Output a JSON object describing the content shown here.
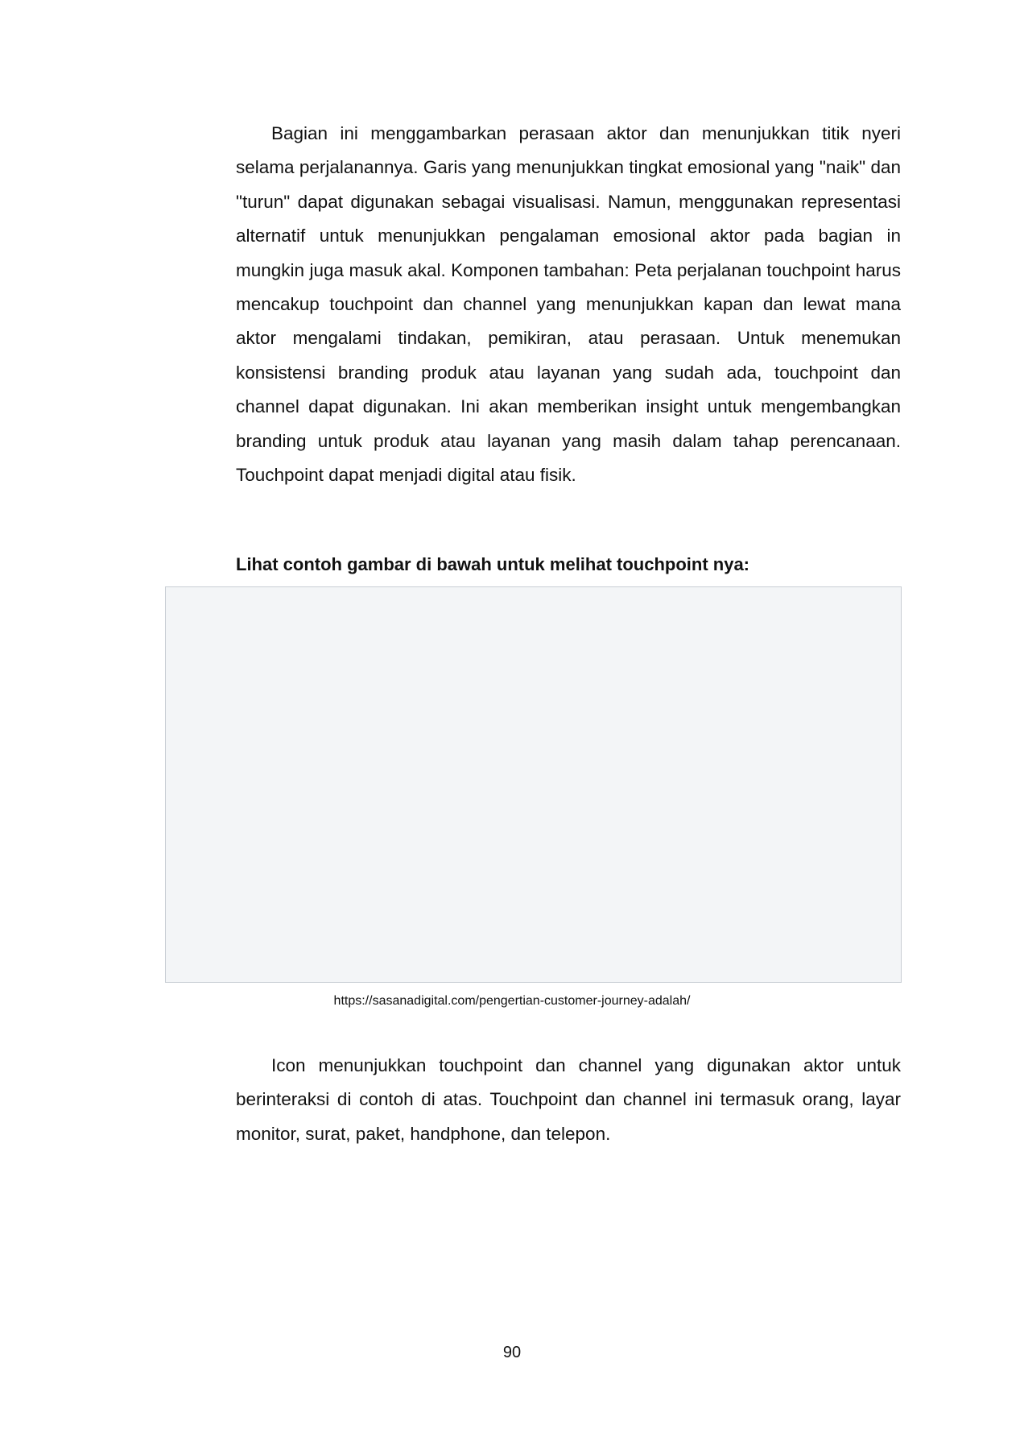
{
  "paragraph_1": "Bagian ini menggambarkan perasaan aktor dan menunjukkan titik nyeri selama perjalanannya. Garis yang menunjukkan tingkat emosional yang \"naik\" dan \"turun\" dapat digunakan sebagai visualisasi. Namun, menggunakan representasi alternatif untuk menunjukkan pengalaman emosional aktor pada bagian in mungkin juga masuk akal. Komponen tambahan: Peta perjalanan touchpoint harus mencakup touchpoint dan channel yang menunjukkan kapan dan lewat mana aktor mengalami tindakan, pemikiran, atau perasaan. Untuk menemukan konsistensi branding produk atau layanan yang sudah ada, touchpoint dan channel dapat digunakan. Ini akan memberikan insight untuk mengembangkan branding untuk produk atau layanan yang masih dalam tahap perencanaan. Touchpoint dapat menjadi digital atau fisik.",
  "figure_heading": "Lihat contoh gambar di bawah untuk melihat touchpoint nya:",
  "figure_caption": "https://sasanadigital.com/pengertian-customer-journey-adalah/",
  "paragraph_2": "Icon menunjukkan touchpoint dan channel yang digunakan aktor untuk berinteraksi di contoh di atas. Touchpoint dan channel ini termasuk orang, layar monitor, surat, paket, handphone, dan telepon.",
  "page_number": "90"
}
